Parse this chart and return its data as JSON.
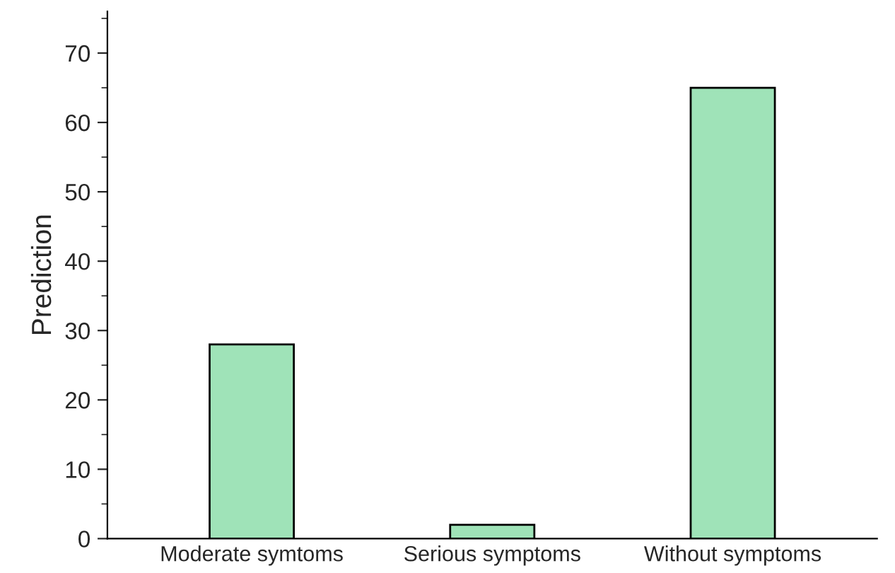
{
  "chart_data": {
    "type": "bar",
    "ylabel": "Prediction",
    "categories": [
      "Moderate symtoms",
      "Serious symptoms",
      "Without symptoms"
    ],
    "values": [
      28,
      2,
      65
    ],
    "color": "#9fe3b8",
    "ylim": [
      0,
      76
    ],
    "yticks": [
      0,
      10,
      20,
      30,
      40,
      50,
      60,
      70
    ],
    "grid": false
  }
}
